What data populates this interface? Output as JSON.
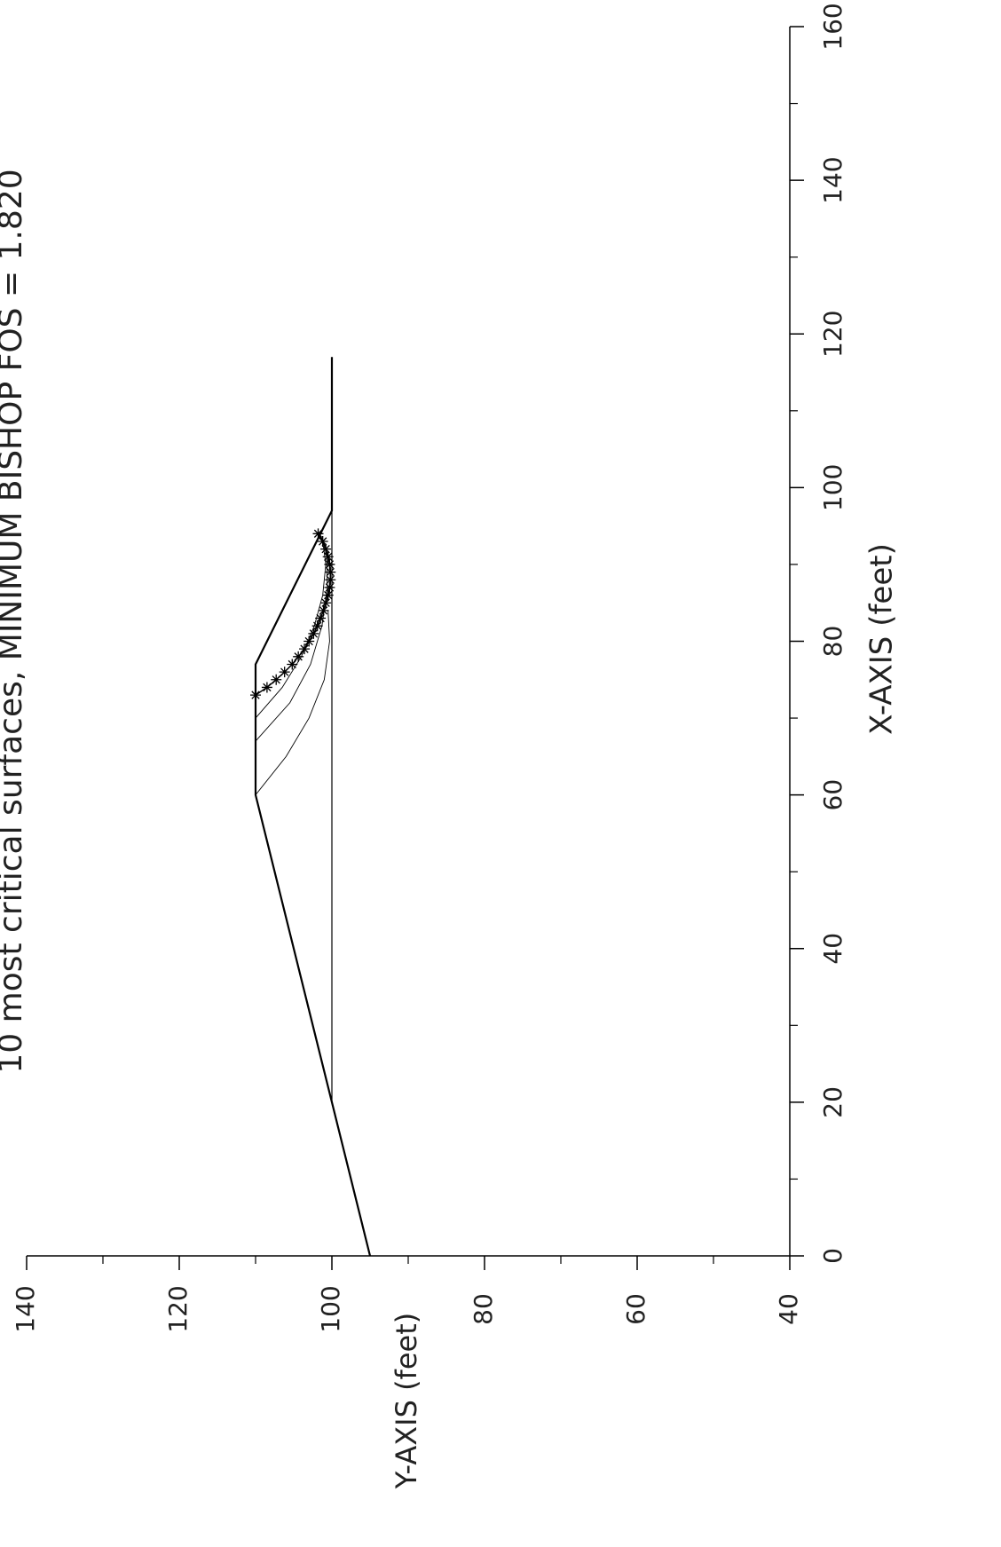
{
  "chart_data": {
    "type": "line",
    "title": "10 most critical surfaces, MINIMUM BISHOP FOS = 1.820",
    "x_label": "X-AXIS (feet)",
    "y_label": "Y-AXIS (feet)",
    "xlim": [
      0,
      160
    ],
    "ylim": [
      40,
      140
    ],
    "xticks": [
      0,
      20,
      40,
      60,
      80,
      100,
      120,
      140,
      160
    ],
    "yticks": [
      40,
      60,
      80,
      100,
      120,
      140
    ],
    "series": [
      {
        "color": "#000000",
        "width": 2.2,
        "x": [
          0,
          60,
          77,
          97,
          117
        ],
        "values": [
          95,
          110,
          110,
          100,
          100
        ]
      },
      {
        "color": "#000000",
        "width": 1.2,
        "x": [
          20,
          97
        ],
        "values": [
          100,
          100
        ]
      },
      {
        "color": "#000000",
        "width": 0.9,
        "x": [
          60,
          65,
          70,
          75,
          80,
          84
        ],
        "values": [
          110,
          106,
          103,
          101,
          100.3,
          100.5
        ]
      },
      {
        "color": "#000000",
        "width": 0.9,
        "x": [
          67,
          72,
          77,
          82,
          87,
          92,
          94
        ],
        "values": [
          110,
          105.5,
          102.8,
          101.3,
          100.6,
          100.7,
          101.6
        ]
      },
      {
        "color": "#000000",
        "width": 0.9,
        "x": [
          70,
          74,
          78,
          82,
          86,
          90,
          93
        ],
        "values": [
          110,
          106.5,
          104,
          102.3,
          101.2,
          100.8,
          101.2
        ]
      },
      {
        "color": "#000000",
        "width": 1.5,
        "markers": true,
        "x": [
          73,
          74,
          75,
          76,
          77,
          78,
          79,
          80,
          81,
          82,
          83,
          84,
          85,
          86,
          87,
          88,
          89,
          90,
          91,
          92,
          93,
          94
        ],
        "values": [
          110,
          108.5,
          107.3,
          106.2,
          105.2,
          104.4,
          103.6,
          103,
          102.4,
          101.9,
          101.5,
          101.1,
          100.8,
          100.5,
          100.3,
          100.2,
          100.2,
          100.3,
          100.5,
          100.8,
          101.2,
          101.8
        ]
      }
    ]
  }
}
